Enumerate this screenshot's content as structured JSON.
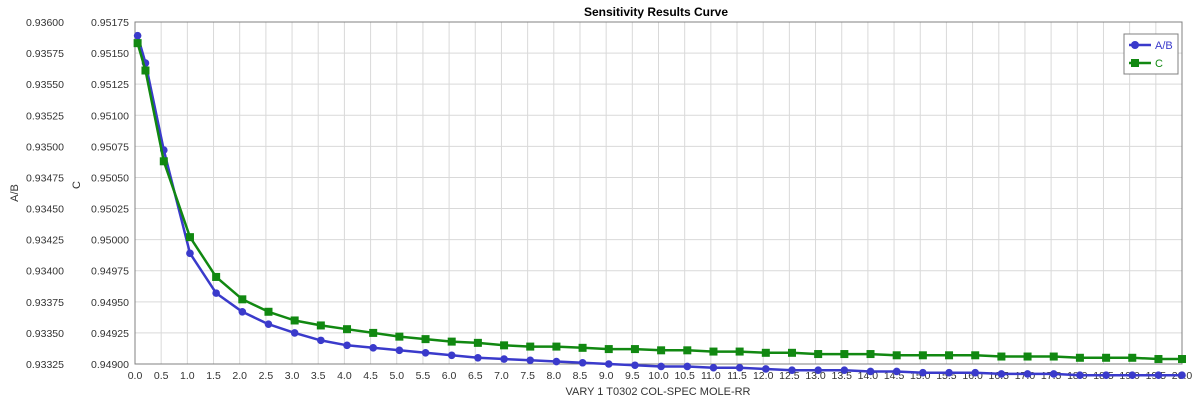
{
  "chart_data": {
    "type": "line",
    "title": "Sensitivity Results Curve",
    "xlabel": "VARY  1 T0302 COL-SPEC MOLE-RR",
    "ylabel_left": "A/B",
    "ylabel_right": "C",
    "xlim": [
      0.0,
      20.0
    ],
    "x_ticks": [
      "0.0",
      "0.5",
      "1.0",
      "1.5",
      "2.0",
      "2.5",
      "3.0",
      "3.5",
      "4.0",
      "4.5",
      "5.0",
      "5.5",
      "6.0",
      "6.5",
      "7.0",
      "7.5",
      "8.0",
      "8.5",
      "9.0",
      "9.5",
      "10.0",
      "10.5",
      "11.0",
      "11.5",
      "12.0",
      "12.5",
      "13.0",
      "13.5",
      "14.0",
      "14.5",
      "15.0",
      "15.5",
      "16.0",
      "16.5",
      "17.0",
      "17.5",
      "18.0",
      "18.5",
      "19.0",
      "19.5",
      "20.0"
    ],
    "y_left_lim": [
      0.93325,
      0.936
    ],
    "y_left_ticks": [
      "0.93600",
      "0.93575",
      "0.93550",
      "0.93525",
      "0.93500",
      "0.93475",
      "0.93450",
      "0.93425",
      "0.93400",
      "0.93375",
      "0.93350",
      "0.93325"
    ],
    "y_right_lim": [
      0.949,
      0.95175
    ],
    "y_right_ticks": [
      "0.95175",
      "0.95150",
      "0.95125",
      "0.95100",
      "0.95075",
      "0.95050",
      "0.95025",
      "0.95000",
      "0.94975",
      "0.94950",
      "0.94925",
      "0.94900"
    ],
    "grid": true,
    "legend_position": "top-right",
    "x": [
      0.05,
      0.2,
      0.55,
      1.05,
      1.55,
      2.05,
      2.55,
      3.05,
      3.55,
      4.05,
      4.55,
      5.05,
      5.55,
      6.05,
      6.55,
      7.05,
      7.55,
      8.05,
      8.55,
      9.05,
      9.55,
      10.05,
      10.55,
      11.05,
      11.55,
      12.05,
      12.55,
      13.05,
      13.55,
      14.05,
      14.55,
      15.05,
      15.55,
      16.05,
      16.55,
      17.05,
      17.55,
      18.05,
      18.55,
      19.05,
      19.55,
      20.0
    ],
    "series": [
      {
        "name": "A/B",
        "axis": "left",
        "color": "#3a3acb",
        "marker": "circle",
        "values": [
          0.93589,
          0.93567,
          0.93497,
          0.93414,
          0.93382,
          0.93367,
          0.93357,
          0.9335,
          0.93344,
          0.9334,
          0.93338,
          0.93336,
          0.93334,
          0.93332,
          0.9333,
          0.93329,
          0.93328,
          0.93327,
          0.93326,
          0.93325,
          0.93324,
          0.93323,
          0.93323,
          0.93322,
          0.93322,
          0.93321,
          0.9332,
          0.9332,
          0.9332,
          0.93319,
          0.93319,
          0.93318,
          0.93318,
          0.93318,
          0.93317,
          0.93317,
          0.93317,
          0.93316,
          0.93316,
          0.93316,
          0.93316,
          0.93316
        ]
      },
      {
        "name": "C",
        "axis": "right",
        "color": "#118811",
        "marker": "square",
        "values": [
          0.95158,
          0.95136,
          0.95063,
          0.95002,
          0.9497,
          0.94952,
          0.94942,
          0.94935,
          0.94931,
          0.94928,
          0.94925,
          0.94922,
          0.9492,
          0.94918,
          0.94917,
          0.94915,
          0.94914,
          0.94914,
          0.94913,
          0.94912,
          0.94912,
          0.94911,
          0.94911,
          0.9491,
          0.9491,
          0.94909,
          0.94909,
          0.94908,
          0.94908,
          0.94908,
          0.94907,
          0.94907,
          0.94907,
          0.94907,
          0.94906,
          0.94906,
          0.94906,
          0.94905,
          0.94905,
          0.94905,
          0.94904,
          0.94904
        ]
      }
    ]
  }
}
